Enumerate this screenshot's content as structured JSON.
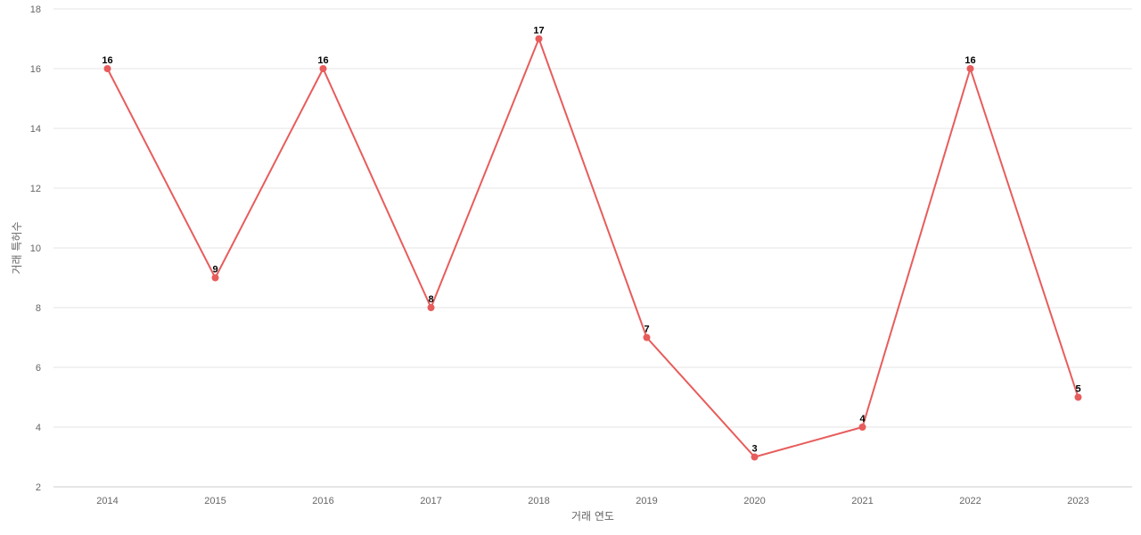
{
  "chart_data": {
    "type": "line",
    "title": "",
    "xlabel": "거래 연도",
    "ylabel": "거래 특허수",
    "categories": [
      "2014",
      "2015",
      "2016",
      "2017",
      "2018",
      "2019",
      "2020",
      "2021",
      "2022",
      "2023"
    ],
    "series": [
      {
        "values": [
          16,
          9,
          16,
          8,
          17,
          7,
          3,
          4,
          16,
          5
        ],
        "color": "#e85c5c"
      }
    ],
    "ylim": [
      2,
      18
    ],
    "yticks": [
      2,
      4,
      6,
      8,
      10,
      12,
      14,
      16,
      18
    ],
    "grid": true,
    "legend": "none",
    "data_labels": true
  }
}
